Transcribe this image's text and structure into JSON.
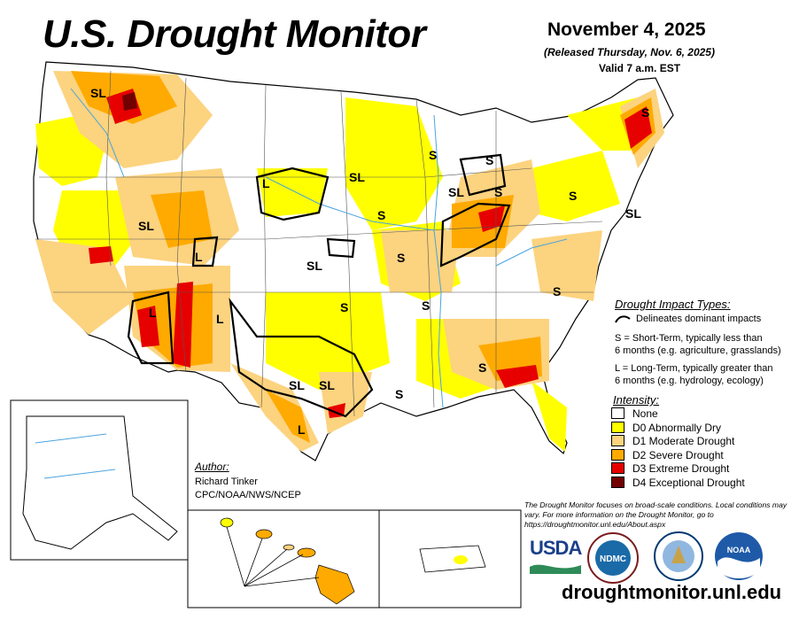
{
  "header": {
    "title": "U.S. Drought Monitor",
    "date": "November 4, 2025",
    "released": "(Released Thursday, Nov. 6, 2025)",
    "valid": "Valid 7 a.m. EST"
  },
  "colors": {
    "none": "#ffffff",
    "d0": "#ffff00",
    "d1": "#fcd37f",
    "d2": "#ffaa00",
    "d3": "#e60000",
    "d4": "#730000",
    "water": "#4aa3df",
    "border": "#000000"
  },
  "map_labels": [
    "SL",
    "SL",
    "L",
    "SL",
    "SL",
    "L",
    "L",
    "L",
    "SL",
    "S",
    "S",
    "S",
    "SL",
    "S",
    "S",
    "S",
    "S",
    "SL",
    "S",
    "S",
    "S",
    "SL",
    "L",
    "S",
    "S",
    "SL"
  ],
  "impact_legend": {
    "title": "Drought Impact Types:",
    "delineates": "Delineates dominant impacts",
    "s_desc_1": "S = Short-Term, typically less than",
    "s_desc_2": "6 months (e.g. agriculture, grasslands)",
    "l_desc_1": "L = Long-Term, typically greater than",
    "l_desc_2": "6 months (e.g. hydrology, ecology)"
  },
  "intensity_legend": {
    "title": "Intensity:",
    "items": [
      {
        "label": "None",
        "color": "#ffffff"
      },
      {
        "label": "D0 Abnormally Dry",
        "color": "#ffff00"
      },
      {
        "label": "D1 Moderate Drought",
        "color": "#fcd37f"
      },
      {
        "label": "D2 Severe Drought",
        "color": "#ffaa00"
      },
      {
        "label": "D3 Extreme Drought",
        "color": "#e60000"
      },
      {
        "label": "D4 Exceptional Drought",
        "color": "#730000"
      }
    ]
  },
  "author": {
    "heading": "Author:",
    "name": "Richard Tinker",
    "org": "CPC/NOAA/NWS/NCEP"
  },
  "footnote": "The Drought Monitor focuses on broad-scale conditions. Local conditions may vary. For more information on the Drought Monitor, go to https://droughtmonitor.unl.edu/About.aspx",
  "logos": {
    "usda": "USDA",
    "ndmc": "NDMC",
    "noaa": "NOAA"
  },
  "url": "droughtmonitor.unl.edu"
}
